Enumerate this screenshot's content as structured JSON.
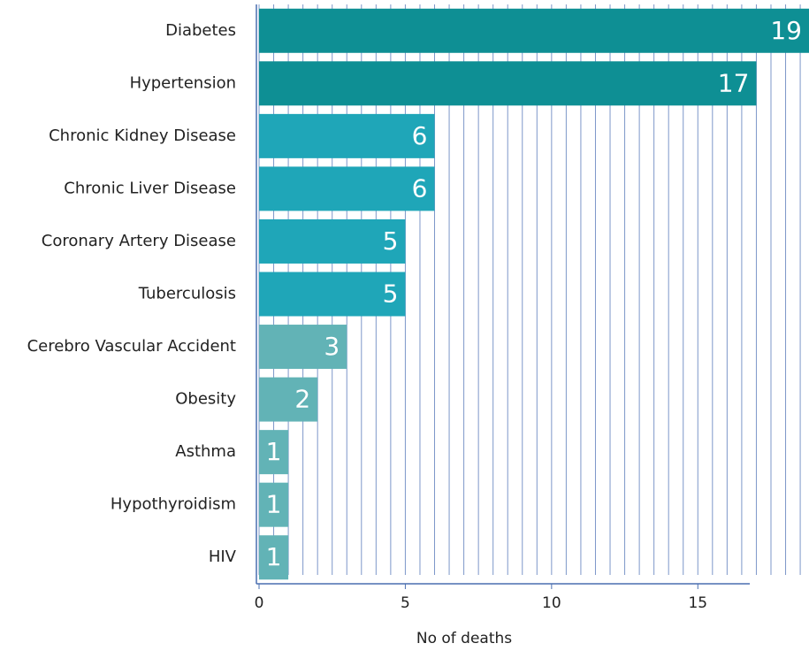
{
  "chart_data": {
    "type": "barh",
    "x_label": "No of deaths",
    "categories": [
      "Diabetes",
      "Hypertension",
      "Chronic Kidney Disease",
      "Chronic Liver Disease",
      "Coronary Artery Disease",
      "Tuberculosis",
      "Cerebro Vascular Accident",
      "Obesity",
      "Asthma",
      "Hypothyroidism",
      "HIV"
    ],
    "values": [
      19,
      17,
      6,
      6,
      5,
      5,
      3,
      2,
      1,
      1,
      1
    ],
    "colors": [
      "#0e8f94",
      "#0e8f94",
      "#1fa6b8",
      "#1fa6b8",
      "#1fa6b8",
      "#1fa6b8",
      "#62b3b6",
      "#62b3b6",
      "#62b3b6",
      "#62b3b6",
      "#62b3b6"
    ],
    "xlim": [
      0,
      18.8
    ],
    "xticks": [
      0,
      5,
      10,
      15
    ],
    "grid": true
  }
}
